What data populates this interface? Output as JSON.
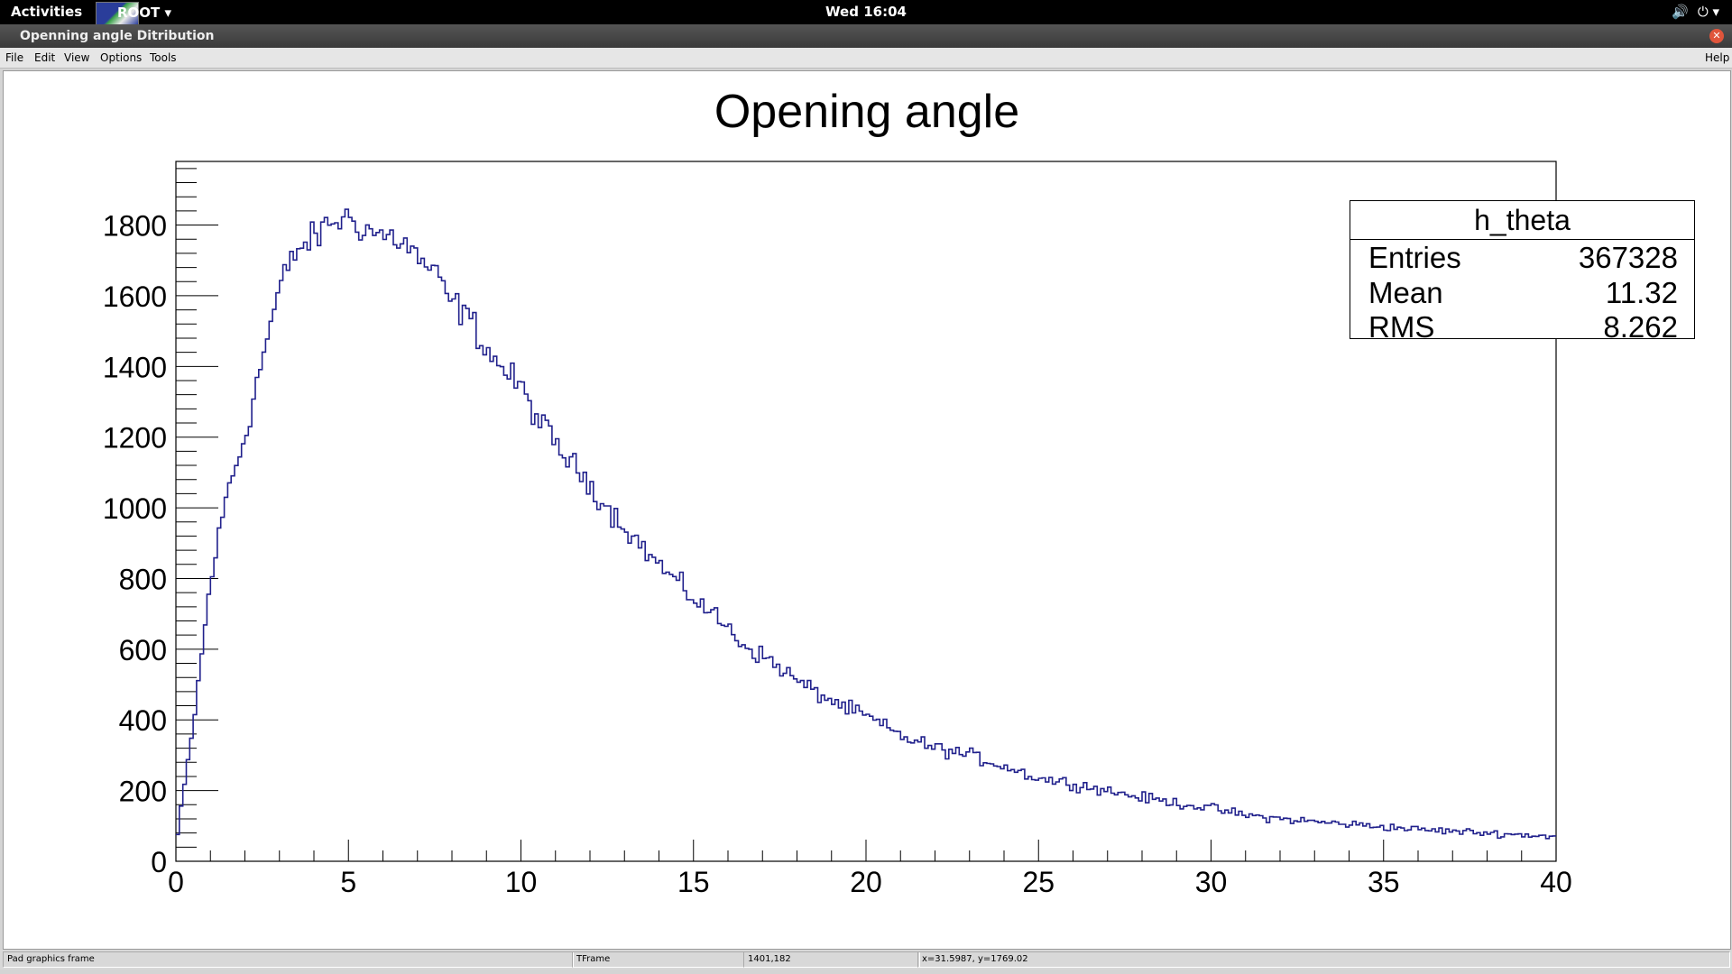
{
  "topbar": {
    "activities": "Activities",
    "app_menu": "ROOT ▾",
    "clock": "Wed 16:04",
    "tray": {
      "volume": "🔊",
      "power": "⏻ ▾"
    }
  },
  "window": {
    "title": "Openning angle Ditribution",
    "close": "✕"
  },
  "menubar": {
    "file": "File",
    "edit": "Edit",
    "view": "View",
    "options": "Options",
    "tools": "Tools",
    "help": "Help"
  },
  "stats": {
    "name": "h_theta",
    "entries_label": "Entries",
    "entries_value": "367328",
    "mean_label": "Mean",
    "mean_value": "11.32",
    "rms_label": "RMS",
    "rms_value": "8.262"
  },
  "statusbar": {
    "object": "Pad graphics frame",
    "class": "TFrame",
    "pixel": "1401,182",
    "coords": "x=31.5987, y=1769.02"
  },
  "colors": {
    "histogram_line": "#20208c",
    "axis": "#000000"
  },
  "chart_data": {
    "type": "histogram",
    "title": "Opening angle",
    "xlabel": "",
    "ylabel": "",
    "xlim": [
      0,
      40
    ],
    "ylim": [
      0,
      1980
    ],
    "x_ticks": [
      0,
      5,
      10,
      15,
      20,
      25,
      30,
      35,
      40
    ],
    "y_ticks": [
      0,
      200,
      400,
      600,
      800,
      1000,
      1200,
      1400,
      1600,
      1800
    ],
    "bin_width": 0.1,
    "envelope_x": [
      0,
      0.2,
      0.5,
      1.0,
      1.5,
      2.0,
      2.5,
      3.0,
      3.5,
      4.0,
      4.5,
      5.0,
      5.5,
      6.0,
      6.5,
      7.0,
      7.5,
      8.0,
      8.5,
      9.0,
      9.5,
      10.0,
      10.5,
      11.0,
      11.5,
      12.0,
      12.5,
      13.0,
      13.5,
      14.0,
      14.5,
      15.0,
      15.5,
      16.0,
      16.5,
      17.0,
      17.5,
      18.0,
      18.5,
      19.0,
      19.5,
      20.0,
      21.0,
      22.0,
      23.0,
      24.0,
      25.0,
      26.0,
      27.0,
      28.0,
      29.0,
      30.0,
      31.0,
      32.0,
      33.0,
      34.0,
      35.0,
      36.0,
      37.0,
      38.0,
      39.0,
      40.0
    ],
    "envelope_y": [
      40,
      180,
      380,
      790,
      1050,
      1200,
      1420,
      1620,
      1730,
      1760,
      1810,
      1820,
      1790,
      1770,
      1760,
      1710,
      1660,
      1580,
      1540,
      1450,
      1390,
      1340,
      1250,
      1180,
      1120,
      1070,
      1000,
      950,
      890,
      840,
      790,
      745,
      705,
      660,
      610,
      580,
      550,
      510,
      480,
      455,
      430,
      410,
      355,
      320,
      300,
      270,
      235,
      220,
      200,
      180,
      165,
      150,
      130,
      120,
      112,
      105,
      98,
      90,
      85,
      80,
      75,
      70
    ]
  }
}
